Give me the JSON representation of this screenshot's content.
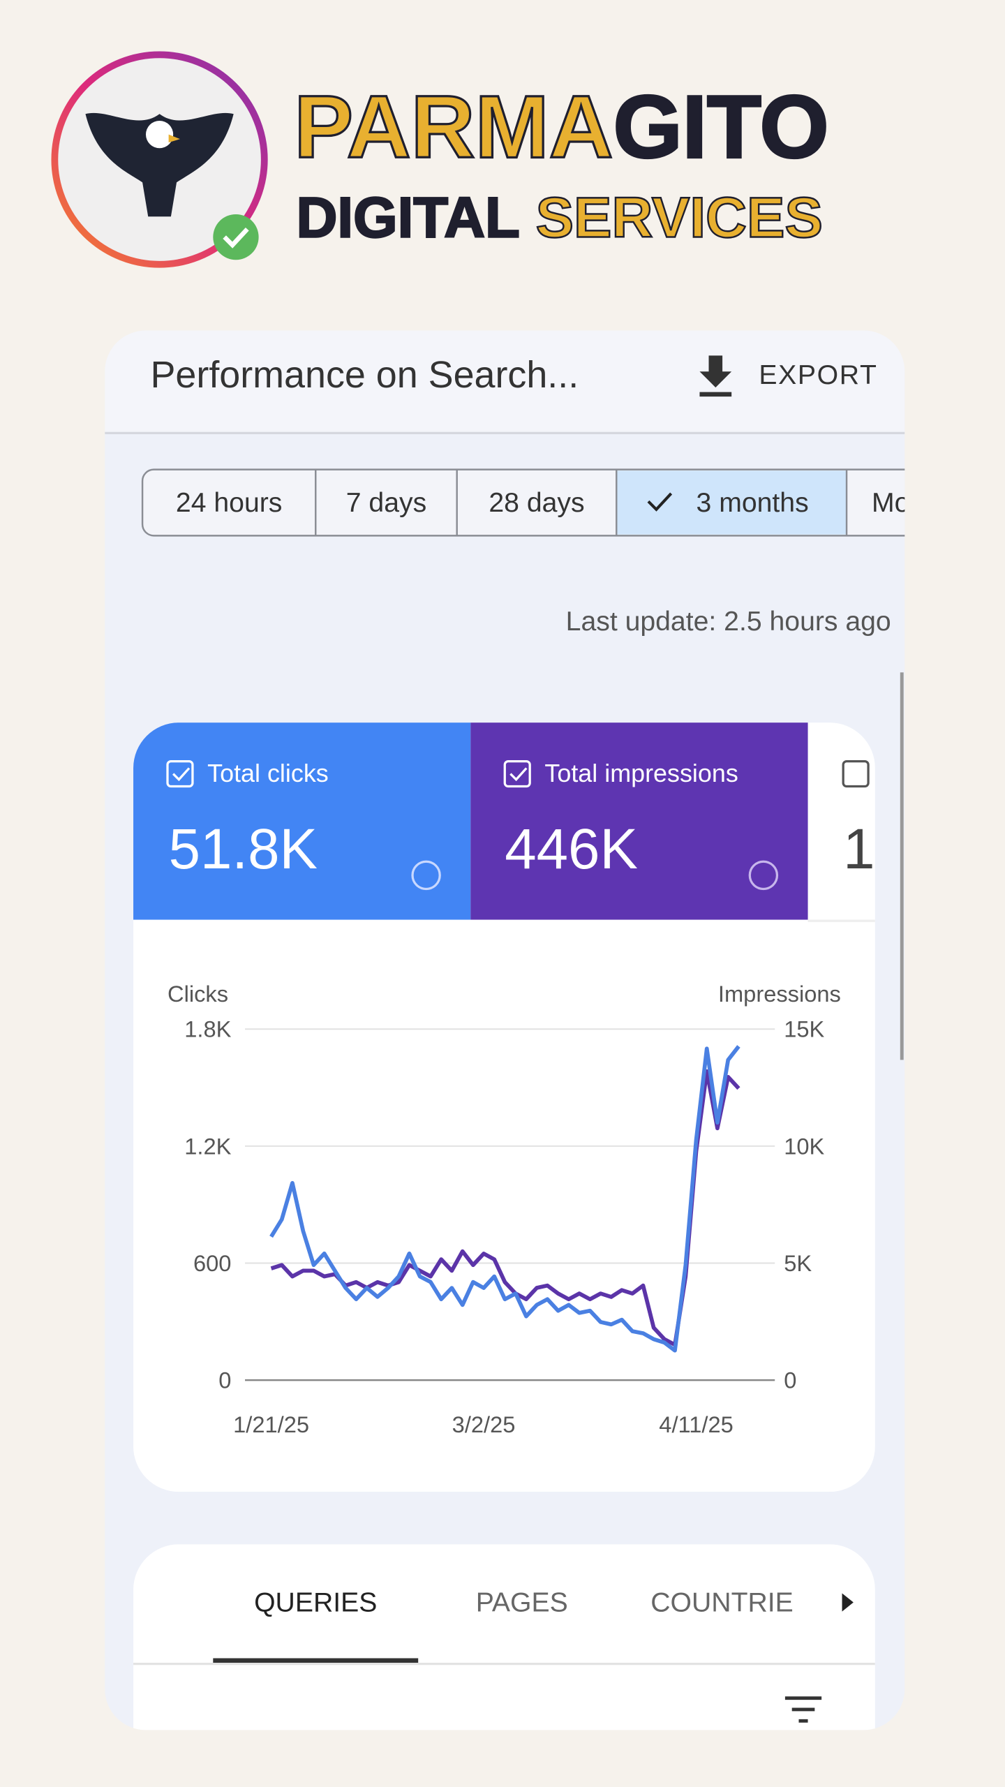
{
  "brand": {
    "name_part1": "PARMA",
    "name_part2": "GITO",
    "tagline_part1": "DIGITAL",
    "tagline_part2": "SERVICES"
  },
  "header": {
    "title": "Performance on Search...",
    "export": "EXPORT"
  },
  "date_filters": [
    "24 hours",
    "7 days",
    "28 days",
    "3 months",
    "Mo"
  ],
  "selected_filter": 3,
  "last_update": "Last update: 2.5 hours ago",
  "metrics": [
    {
      "label": "Total clicks",
      "value": "51.8K"
    },
    {
      "label": "Total impressions",
      "value": "446K"
    },
    {
      "value": "1"
    }
  ],
  "tabs": [
    "QUERIES",
    "PAGES",
    "COUNTRIE"
  ],
  "chart_data": {
    "type": "line",
    "y_label": "Clicks",
    "y2_label": "Impressions",
    "categories": [
      "1/21/25",
      null,
      null,
      null,
      null,
      null,
      null,
      null,
      null,
      null,
      null,
      null,
      null,
      null,
      null,
      null,
      null,
      null,
      null,
      null,
      "3/2/25",
      null,
      null,
      null,
      null,
      null,
      null,
      null,
      null,
      null,
      null,
      null,
      null,
      null,
      null,
      null,
      null,
      null,
      null,
      null,
      "4/11/25",
      null,
      null,
      null,
      null
    ],
    "series": [
      {
        "name": "Clicks",
        "color": "#4a80e2",
        "values": [
          736,
          824,
          1011,
          765,
          590,
          649,
          561,
          473,
          415,
          473,
          427,
          473,
          532,
          649,
          532,
          503,
          415,
          473,
          386,
          503,
          473,
          532,
          415,
          444,
          327,
          386,
          415,
          356,
          386,
          345,
          356,
          298,
          286,
          310,
          251,
          240,
          210,
          193,
          152,
          590,
          1233,
          1700,
          1321,
          1642,
          1712
        ]
      },
      {
        "name": "Impressions",
        "color": "#5b34a8",
        "axis": "y2",
        "values": [
          4773,
          4919,
          4432,
          4675,
          4675,
          4432,
          4529,
          4042,
          4188,
          3945,
          4188,
          4042,
          4188,
          4919,
          4675,
          4432,
          5162,
          4675,
          5503,
          4919,
          5406,
          5162,
          4188,
          3701,
          3458,
          3945,
          4042,
          3701,
          3458,
          3701,
          3458,
          3701,
          3555,
          3847,
          3701,
          4042,
          2240,
          1753,
          1510,
          4432,
          9789,
          13198,
          10763,
          12955,
          12468
        ]
      }
    ],
    "ylim": [
      0,
      1800
    ],
    "yticks": [
      0,
      600,
      {
        "value": 1200,
        "label": "1.2K"
      },
      {
        "value": 1800,
        "label": "1.8K"
      }
    ],
    "y2lim": [
      0,
      15000
    ],
    "y2ticks": [
      0,
      {
        "value": 5000,
        "label": "5K"
      },
      {
        "value": 10000,
        "label": "10K"
      },
      {
        "value": 15000,
        "label": "15K"
      }
    ],
    "grid": true
  }
}
